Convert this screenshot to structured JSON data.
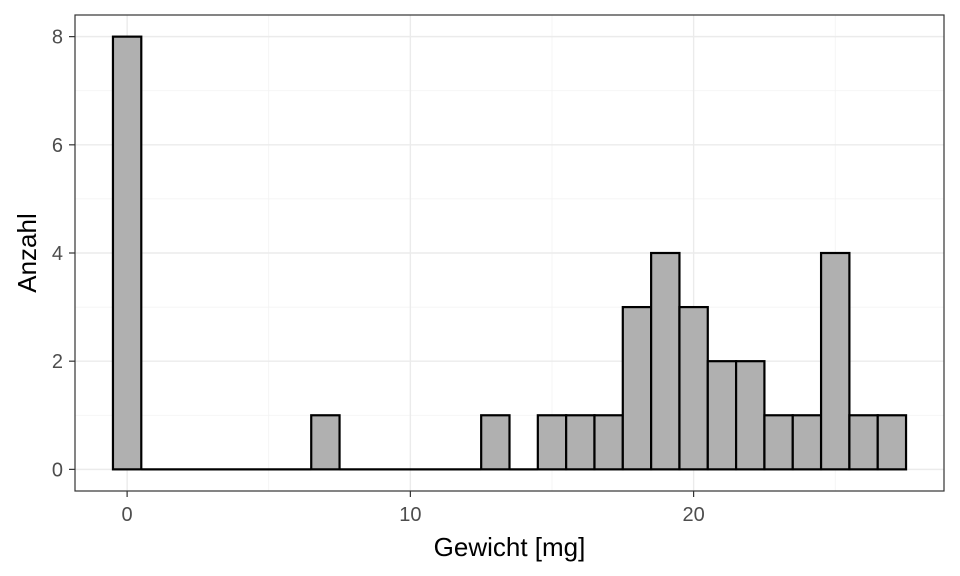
{
  "chart_data": {
    "type": "bar",
    "subtype": "histogram",
    "title": "",
    "xlabel": "Gewicht [mg]",
    "ylabel": "Anzahl",
    "bin_width": 1,
    "bins": [
      {
        "center": 0,
        "count": 8
      },
      {
        "center": 1,
        "count": 0
      },
      {
        "center": 2,
        "count": 0
      },
      {
        "center": 3,
        "count": 0
      },
      {
        "center": 4,
        "count": 0
      },
      {
        "center": 5,
        "count": 0
      },
      {
        "center": 6,
        "count": 0
      },
      {
        "center": 7,
        "count": 1
      },
      {
        "center": 8,
        "count": 0
      },
      {
        "center": 9,
        "count": 0
      },
      {
        "center": 10,
        "count": 0
      },
      {
        "center": 11,
        "count": 0
      },
      {
        "center": 12,
        "count": 0
      },
      {
        "center": 13,
        "count": 1
      },
      {
        "center": 14,
        "count": 0
      },
      {
        "center": 15,
        "count": 1
      },
      {
        "center": 16,
        "count": 1
      },
      {
        "center": 17,
        "count": 1
      },
      {
        "center": 18,
        "count": 3
      },
      {
        "center": 19,
        "count": 4
      },
      {
        "center": 20,
        "count": 3
      },
      {
        "center": 21,
        "count": 2
      },
      {
        "center": 22,
        "count": 2
      },
      {
        "center": 23,
        "count": 1
      },
      {
        "center": 24,
        "count": 1
      },
      {
        "center": 25,
        "count": 4
      },
      {
        "center": 26,
        "count": 1
      },
      {
        "center": 27,
        "count": 1
      }
    ],
    "xlim": [
      -1.84,
      28.84
    ],
    "ylim": [
      -0.4,
      8.4
    ],
    "x_ticks": [
      0,
      10,
      20
    ],
    "x_tick_labels": [
      "0",
      "10",
      "20"
    ],
    "y_ticks": [
      0,
      2,
      4,
      6,
      8
    ],
    "y_tick_labels": [
      "0",
      "2",
      "4",
      "6",
      "8"
    ],
    "grid": true,
    "legend": "none",
    "colors": {
      "bar_fill": "#b0b0b0",
      "bar_stroke": "#000000",
      "panel_border": "#333333",
      "grid": "#ebebeb"
    }
  }
}
